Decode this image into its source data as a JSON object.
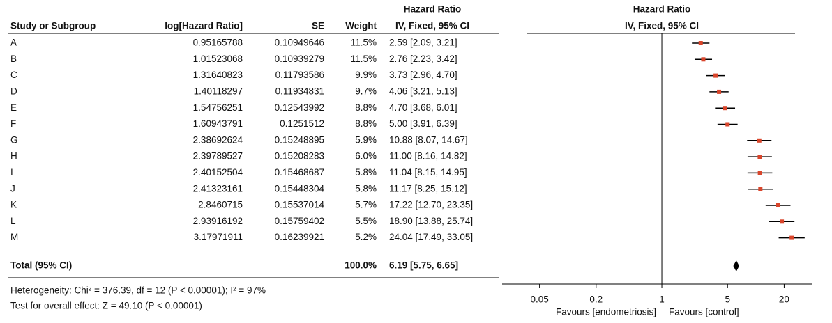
{
  "chart_data": {
    "type": "forest",
    "headers": {
      "study": "Study or Subgroup",
      "loghr": "log[Hazard Ratio]",
      "se": "SE",
      "weight": "Weight",
      "effect": "Hazard Ratio",
      "method": "IV, Fixed, 95% CI"
    },
    "plot_headers": {
      "effect": "Hazard Ratio",
      "method": "IV, Fixed, 95% CI"
    },
    "studies": [
      {
        "name": "A",
        "loghr": "0.95165788",
        "se": "0.10949646",
        "weight": "11.5%",
        "ci": "2.59 [2.09, 3.21]",
        "hr": 2.59,
        "lower": 2.09,
        "upper": 3.21
      },
      {
        "name": "B",
        "loghr": "1.01523068",
        "se": "0.10939279",
        "weight": "11.5%",
        "ci": "2.76 [2.23, 3.42]",
        "hr": 2.76,
        "lower": 2.23,
        "upper": 3.42
      },
      {
        "name": "C",
        "loghr": "1.31640823",
        "se": "0.11793586",
        "weight": "9.9%",
        "ci": "3.73 [2.96, 4.70]",
        "hr": 3.73,
        "lower": 2.96,
        "upper": 4.7
      },
      {
        "name": "D",
        "loghr": "1.40118297",
        "se": "0.11934831",
        "weight": "9.7%",
        "ci": "4.06 [3.21, 5.13]",
        "hr": 4.06,
        "lower": 3.21,
        "upper": 5.13
      },
      {
        "name": "E",
        "loghr": "1.54756251",
        "se": "0.12543992",
        "weight": "8.8%",
        "ci": "4.70 [3.68, 6.01]",
        "hr": 4.7,
        "lower": 3.68,
        "upper": 6.01
      },
      {
        "name": "F",
        "loghr": "1.60943791",
        "se": "0.1251512",
        "weight": "8.8%",
        "ci": "5.00 [3.91, 6.39]",
        "hr": 5.0,
        "lower": 3.91,
        "upper": 6.39
      },
      {
        "name": "G",
        "loghr": "2.38692624",
        "se": "0.15248895",
        "weight": "5.9%",
        "ci": "10.88 [8.07, 14.67]",
        "hr": 10.88,
        "lower": 8.07,
        "upper": 14.67
      },
      {
        "name": "H",
        "loghr": "2.39789527",
        "se": "0.15208283",
        "weight": "6.0%",
        "ci": "11.00 [8.16, 14.82]",
        "hr": 11.0,
        "lower": 8.16,
        "upper": 14.82
      },
      {
        "name": "I",
        "loghr": "2.40152504",
        "se": "0.15468687",
        "weight": "5.8%",
        "ci": "11.04 [8.15, 14.95]",
        "hr": 11.04,
        "lower": 8.15,
        "upper": 14.95
      },
      {
        "name": "J",
        "loghr": "2.41323161",
        "se": "0.15448304",
        "weight": "5.8%",
        "ci": "11.17 [8.25, 15.12]",
        "hr": 11.17,
        "lower": 8.25,
        "upper": 15.12
      },
      {
        "name": "K",
        "loghr": "2.8460715",
        "se": "0.15537014",
        "weight": "5.7%",
        "ci": "17.22 [12.70, 23.35]",
        "hr": 17.22,
        "lower": 12.7,
        "upper": 23.35
      },
      {
        "name": "L",
        "loghr": "2.93916192",
        "se": "0.15759402",
        "weight": "5.5%",
        "ci": "18.90 [13.88, 25.74]",
        "hr": 18.9,
        "lower": 13.88,
        "upper": 25.74
      },
      {
        "name": "M",
        "loghr": "3.17971911",
        "se": "0.16239921",
        "weight": "5.2%",
        "ci": "24.04 [17.49, 33.05]",
        "hr": 24.04,
        "lower": 17.49,
        "upper": 33.05
      }
    ],
    "total": {
      "name": "Total (95% CI)",
      "weight": "100.0%",
      "ci": "6.19 [5.75, 6.65]",
      "hr": 6.19,
      "lower": 5.75,
      "upper": 6.65
    },
    "heterogeneity": "Heterogeneity: Chi² = 376.39, df = 12 (P < 0.00001); I² = 97%",
    "overall_effect": "Test for overall effect: Z = 49.10 (P < 0.00001)",
    "xlim": [
      0.02,
      40
    ],
    "xticks": [
      0.05,
      0.2,
      1,
      5,
      20
    ],
    "log_x": true,
    "reference": 1,
    "favours_left": "Favours [endometriosis]",
    "favours_right": "Favours [control]",
    "marker_color": "#d9452b"
  }
}
